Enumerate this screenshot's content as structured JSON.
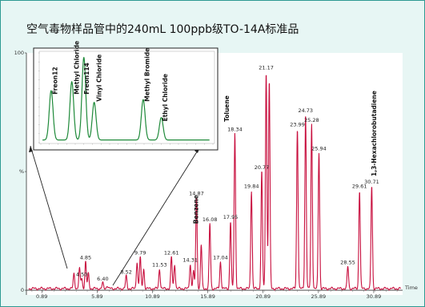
{
  "title": "空气毒物样品管中的240mL 100ppb级TO-14A标准品",
  "colors": {
    "main_trace": "#c8103f",
    "inset_trace": "#1f8a3a",
    "frame": "#2e9a93",
    "background": "#e7f6f4"
  },
  "chart_data": [
    {
      "type": "line",
      "name": "main-chromatogram",
      "xlabel": "Time",
      "ylabel": "%",
      "xlim": [
        -0.5,
        33.5
      ],
      "ylim": [
        -2,
        100
      ],
      "y_ticks": [
        {
          "value": 0,
          "label": "0"
        },
        {
          "value": 50,
          "label": "%"
        },
        {
          "value": 100,
          "label": "100"
        }
      ],
      "x_ticks": [
        0.89,
        5.89,
        10.89,
        15.89,
        20.89,
        25.89,
        30.89
      ],
      "x_tick_labels": [
        "0.89",
        "5.89",
        "10.89",
        "15.89",
        "20.89",
        "25.89",
        "30.89"
      ],
      "baseline": 0.7,
      "peaks": [
        {
          "x": 3.8,
          "y": 7,
          "label": ""
        },
        {
          "x": 4.3,
          "y": 9,
          "label": ""
        },
        {
          "x": 4.5,
          "y": 5,
          "label": "4.50"
        },
        {
          "x": 4.85,
          "y": 12,
          "label": "4.85"
        },
        {
          "x": 5.1,
          "y": 7,
          "label": ""
        },
        {
          "x": 6.4,
          "y": 3,
          "label": "6.40"
        },
        {
          "x": 6.8,
          "y": 2,
          "label": ""
        },
        {
          "x": 8.52,
          "y": 6,
          "label": "8.52"
        },
        {
          "x": 9.5,
          "y": 12,
          "label": ""
        },
        {
          "x": 9.79,
          "y": 14,
          "label": "9.79"
        },
        {
          "x": 10.1,
          "y": 9,
          "label": ""
        },
        {
          "x": 11.53,
          "y": 9,
          "label": "11.53"
        },
        {
          "x": 12.61,
          "y": 14,
          "label": "12.61"
        },
        {
          "x": 12.9,
          "y": 11,
          "label": ""
        },
        {
          "x": 14.31,
          "y": 11,
          "label": "14.31"
        },
        {
          "x": 14.6,
          "y": 8,
          "label": ""
        },
        {
          "x": 14.87,
          "y": 39,
          "label": "14.87"
        },
        {
          "x": 15.3,
          "y": 19,
          "label": ""
        },
        {
          "x": 16.08,
          "y": 28,
          "label": "16.08"
        },
        {
          "x": 17.04,
          "y": 12,
          "label": "17.04"
        },
        {
          "x": 17.95,
          "y": 29,
          "label": "17.95"
        },
        {
          "x": 18.34,
          "y": 66,
          "label": "18.34"
        },
        {
          "x": 19.84,
          "y": 42,
          "label": "19.84"
        },
        {
          "x": 20.77,
          "y": 50,
          "label": "20.77"
        },
        {
          "x": 21.17,
          "y": 92,
          "label": "21.17"
        },
        {
          "x": 21.45,
          "y": 88,
          "label": ""
        },
        {
          "x": 23.99,
          "y": 68,
          "label": "23.99"
        },
        {
          "x": 24.73,
          "y": 74,
          "label": "24.73"
        },
        {
          "x": 25.28,
          "y": 70,
          "label": "25.28"
        },
        {
          "x": 25.94,
          "y": 58,
          "label": "25.94"
        },
        {
          "x": 28.55,
          "y": 10,
          "label": "28.55"
        },
        {
          "x": 29.61,
          "y": 42,
          "label": "29.61"
        },
        {
          "x": 30.71,
          "y": 44,
          "label": "30.71"
        }
      ],
      "compound_labels": [
        {
          "text": "Benzene",
          "x": 15.0,
          "y": 28
        },
        {
          "text": "Toluene",
          "x": 17.8,
          "y": 71
        },
        {
          "text": "1,3-Hexachlorobutadiene",
          "x": 31.1,
          "y": 48
        }
      ]
    },
    {
      "type": "line",
      "name": "inset-chromatogram",
      "ylim": [
        0,
        100
      ],
      "xlim": [
        0,
        20
      ],
      "baseline": 3,
      "peaks": [
        {
          "x": 1.2,
          "y": 58
        },
        {
          "x": 3.6,
          "y": 68
        },
        {
          "x": 5.0,
          "y": 95
        },
        {
          "x": 6.2,
          "y": 45
        },
        {
          "x": 11.9,
          "y": 48
        },
        {
          "x": 14.0,
          "y": 28
        }
      ],
      "compound_labels": [
        {
          "text": "Freon12",
          "x": 1.9,
          "y": 52
        },
        {
          "text": "Methyl Chloride",
          "x": 4.4,
          "y": 52
        },
        {
          "text": "Freon114",
          "x": 5.6,
          "y": 52
        },
        {
          "text": "Vinyl Chloride",
          "x": 7.0,
          "y": 44
        },
        {
          "text": "Methyl Bromide",
          "x": 12.6,
          "y": 44
        },
        {
          "text": "Ethyl Chloride",
          "x": 14.7,
          "y": 22
        }
      ]
    }
  ]
}
